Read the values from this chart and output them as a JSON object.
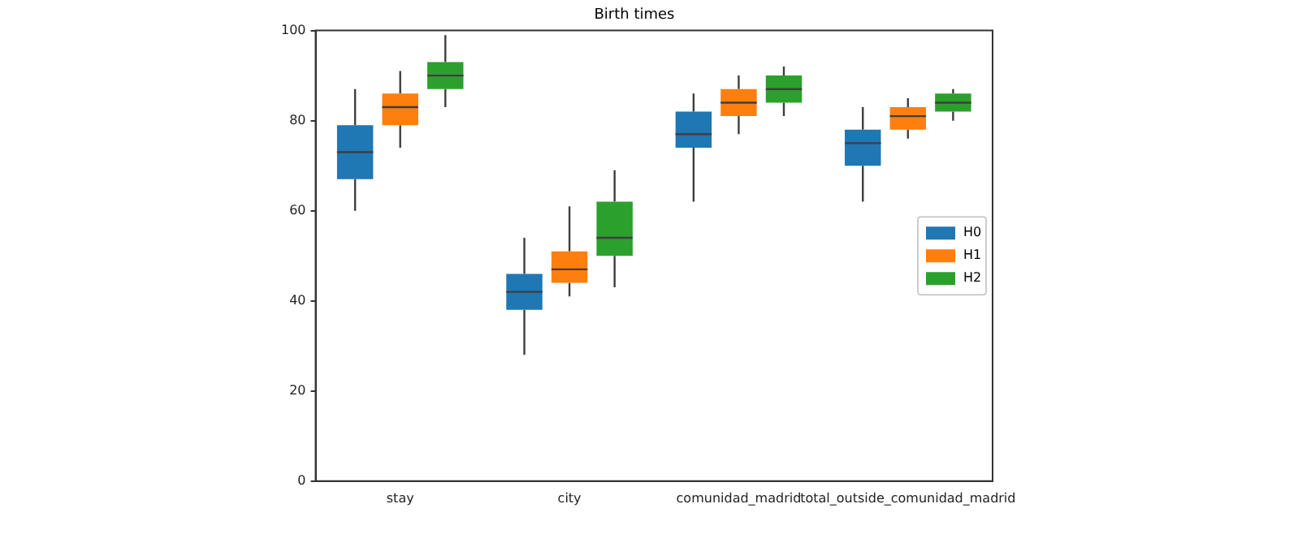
{
  "chart_data": {
    "type": "box",
    "title": "Birth times",
    "categories": [
      "stay",
      "city",
      "comunidad_madrid",
      "total_outside_comunidad_madrid"
    ],
    "ylim": [
      0,
      100
    ],
    "yticks": [
      0,
      20,
      40,
      60,
      80,
      100
    ],
    "grid": false,
    "legend": "right",
    "series": [
      {
        "name": "H0",
        "color": "#1f77b4",
        "boxes": [
          {
            "low": 60,
            "q1": 67,
            "median": 73,
            "q3": 79,
            "high": 87
          },
          {
            "low": 28,
            "q1": 38,
            "median": 42,
            "q3": 46,
            "high": 54
          },
          {
            "low": 62,
            "q1": 74,
            "median": 77,
            "q3": 82,
            "high": 86
          },
          {
            "low": 62,
            "q1": 70,
            "median": 75,
            "q3": 78,
            "high": 83
          }
        ]
      },
      {
        "name": "H1",
        "color": "#ff7f0e",
        "boxes": [
          {
            "low": 74,
            "q1": 79,
            "median": 83,
            "q3": 86,
            "high": 91
          },
          {
            "low": 41,
            "q1": 44,
            "median": 47,
            "q3": 51,
            "high": 61
          },
          {
            "low": 77,
            "q1": 81,
            "median": 84,
            "q3": 87,
            "high": 90
          },
          {
            "low": 76,
            "q1": 78,
            "median": 81,
            "q3": 83,
            "high": 85
          }
        ]
      },
      {
        "name": "H2",
        "color": "#2ca02c",
        "boxes": [
          {
            "low": 83,
            "q1": 87,
            "median": 90,
            "q3": 93,
            "high": 99
          },
          {
            "low": 43,
            "q1": 50,
            "median": 54,
            "q3": 62,
            "high": 69
          },
          {
            "low": 81,
            "q1": 84,
            "median": 87,
            "q3": 90,
            "high": 92
          },
          {
            "low": 80,
            "q1": 82,
            "median": 84,
            "q3": 86,
            "high": 87
          }
        ]
      }
    ]
  }
}
